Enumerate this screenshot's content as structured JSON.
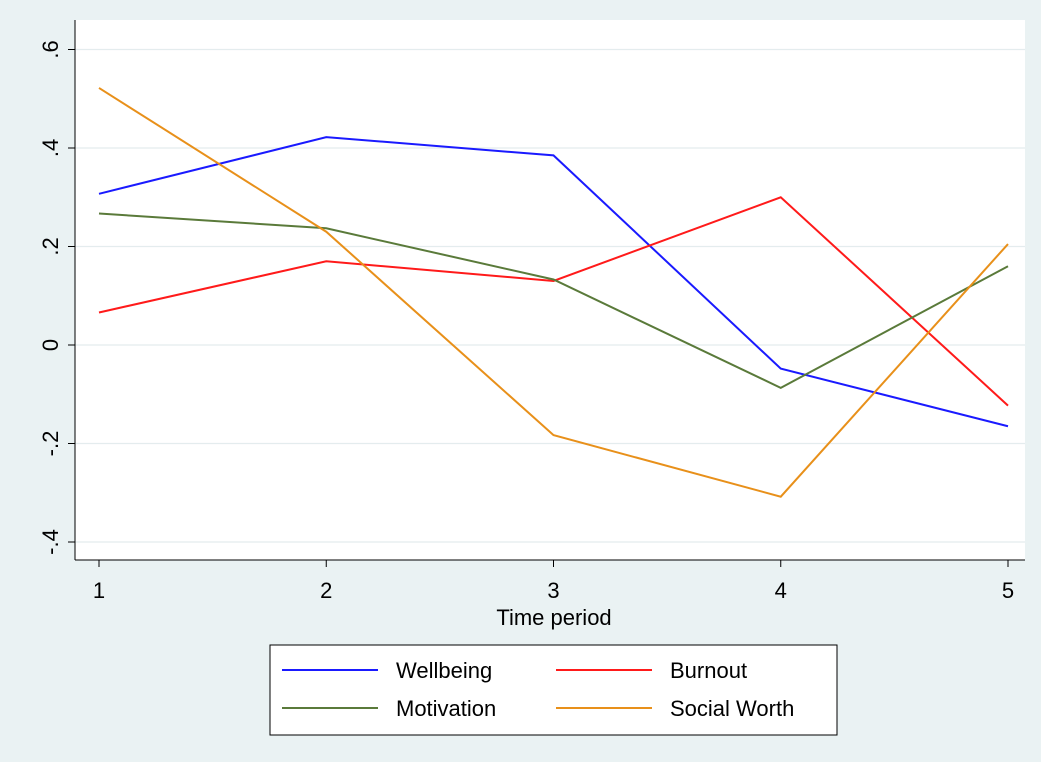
{
  "chart_data": {
    "type": "line",
    "title": "",
    "xlabel": "Time period",
    "ylabel": "",
    "x": [
      1,
      2,
      3,
      4,
      5
    ],
    "xlim": [
      1,
      5
    ],
    "ylim": [
      -0.4,
      0.6
    ],
    "x_ticks": [
      1,
      2,
      3,
      4,
      5
    ],
    "x_tick_labels": [
      "1",
      "2",
      "3",
      "4",
      "5"
    ],
    "y_ticks": [
      -0.4,
      -0.2,
      0,
      0.2,
      0.4,
      0.6
    ],
    "y_tick_labels": [
      "-.4",
      "-.2",
      "0",
      ".2",
      ".4",
      ".6"
    ],
    "grid": true,
    "legend_position": "bottom",
    "series": [
      {
        "name": "Wellbeing",
        "color": "#1a1aff",
        "values": [
          0.307,
          0.422,
          0.385,
          -0.048,
          -0.165
        ]
      },
      {
        "name": "Burnout",
        "color": "#ff1a1a",
        "values": [
          0.066,
          0.17,
          0.13,
          0.3,
          -0.123
        ]
      },
      {
        "name": "Motivation",
        "color": "#5a7a3a",
        "values": [
          0.267,
          0.237,
          0.133,
          -0.087,
          0.16
        ]
      },
      {
        "name": "Social Worth",
        "color": "#e8901a",
        "values": [
          0.522,
          0.23,
          -0.183,
          -0.308,
          0.205
        ]
      }
    ]
  }
}
